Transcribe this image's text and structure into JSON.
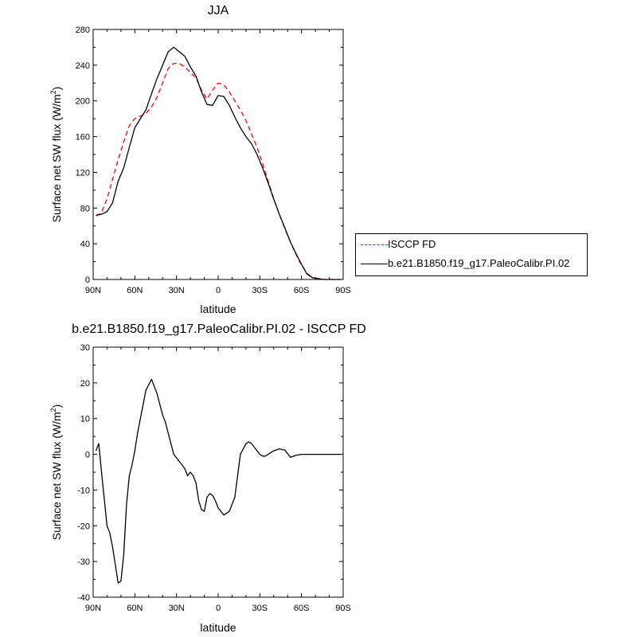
{
  "colors": {
    "obs": "#ff0000",
    "model": "#000000"
  },
  "chart_data": [
    {
      "type": "line",
      "title": "JJA",
      "xlabel": "latitude",
      "ylabel": "Surface net SW flux (W/m",
      "ylabel_sup": "2",
      "ylabel_close": ")",
      "xlim": [
        90,
        -90
      ],
      "ylim": [
        0,
        280
      ],
      "xticks": [
        90,
        60,
        30,
        0,
        -30,
        -60,
        -90
      ],
      "xticklabels": [
        "90N",
        "60N",
        "30N",
        "0",
        "30S",
        "60S",
        "90S"
      ],
      "yticks": [
        0,
        40,
        80,
        120,
        160,
        200,
        240,
        280
      ],
      "yticklabels": [
        "0",
        "40",
        "80",
        "120",
        "160",
        "200",
        "240",
        "280"
      ],
      "legend_position": "right",
      "series": [
        {
          "name": "ISCCP FD",
          "style": "dashed",
          "color": "#ff0000",
          "x": [
            88,
            84,
            80,
            76,
            72,
            68,
            64,
            60,
            56,
            52,
            48,
            44,
            40,
            36,
            32,
            28,
            24,
            20,
            16,
            12,
            8,
            4,
            0,
            -4,
            -8,
            -12,
            -16,
            -20,
            -24,
            -28,
            -32,
            -36,
            -40,
            -44,
            -48,
            -52,
            -56,
            -60,
            -64,
            -68,
            -72,
            -76,
            -80,
            -84,
            -88
          ],
          "y": [
            71,
            75,
            90,
            112,
            134,
            154,
            172,
            180,
            183,
            186,
            193,
            204,
            220,
            236,
            242,
            242,
            238,
            232,
            226,
            212,
            202,
            212,
            220,
            218,
            210,
            200,
            190,
            178,
            163,
            148,
            130,
            110,
            91,
            73,
            57,
            42,
            28,
            16,
            7,
            2,
            1,
            0,
            0,
            0,
            0
          ]
        },
        {
          "name": "b.e21.B1850.f19_g17.PaleoCalibr.PI.02",
          "style": "solid",
          "color": "#000000",
          "x": [
            88,
            84,
            80,
            76,
            72,
            68,
            64,
            60,
            56,
            52,
            48,
            44,
            40,
            36,
            32,
            28,
            24,
            20,
            16,
            12,
            8,
            4,
            0,
            -4,
            -8,
            -12,
            -16,
            -20,
            -24,
            -28,
            -32,
            -36,
            -40,
            -44,
            -48,
            -52,
            -56,
            -60,
            -64,
            -68,
            -72,
            -76,
            -80,
            -84,
            -88
          ],
          "y": [
            72,
            73,
            76,
            86,
            110,
            125,
            148,
            170,
            180,
            190,
            208,
            225,
            240,
            255,
            260,
            255,
            250,
            238,
            228,
            210,
            196,
            195,
            206,
            205,
            195,
            182,
            170,
            160,
            152,
            140,
            125,
            108,
            90,
            73,
            58,
            42,
            29,
            17,
            6,
            2,
            1,
            0,
            0,
            0,
            0
          ]
        }
      ]
    },
    {
      "type": "line",
      "title": "b.e21.B1850.f19_g17.PaleoCalibr.PI.02 - ISCCP FD",
      "xlabel": "latitude",
      "ylabel": "Surface net SW flux (W/m",
      "ylabel_sup": "2",
      "ylabel_close": ")",
      "xlim": [
        90,
        -90
      ],
      "ylim": [
        -40,
        30
      ],
      "xticks": [
        90,
        60,
        30,
        0,
        -30,
        -60,
        -90
      ],
      "xticklabels": [
        "90N",
        "60N",
        "30N",
        "0",
        "30S",
        "60S",
        "90S"
      ],
      "yticks": [
        -40,
        -30,
        -20,
        -10,
        0,
        10,
        20,
        30
      ],
      "yticklabels": [
        "-40",
        "-30",
        "-20",
        "-10",
        "0",
        "10",
        "20",
        "30"
      ],
      "series": [
        {
          "color": "#000000",
          "style": "solid",
          "x": [
            88,
            86,
            84,
            80,
            78,
            76,
            72,
            70,
            68,
            66,
            64,
            62,
            60,
            58,
            56,
            52,
            48,
            44,
            42,
            40,
            38,
            36,
            32,
            28,
            26,
            24,
            22,
            20,
            18,
            16,
            14,
            12,
            10,
            8,
            6,
            4,
            2,
            0,
            -4,
            -8,
            -12,
            -14,
            -16,
            -20,
            -22,
            -24,
            -26,
            -28,
            -30,
            -32,
            -34,
            -36,
            -38,
            -40,
            -44,
            -48,
            -52,
            -56,
            -60,
            -64,
            -68,
            -72,
            -76,
            -80,
            -84,
            -88
          ],
          "y": [
            1,
            3,
            -5,
            -20,
            -22,
            -26,
            -36,
            -35.5,
            -28,
            -14,
            -6,
            -3,
            1,
            6,
            10,
            18,
            21,
            17,
            14,
            11,
            9,
            6,
            0,
            -2,
            -3,
            -4,
            -6,
            -5,
            -6,
            -8,
            -13,
            -15.5,
            -16,
            -12,
            -11,
            -11.5,
            -13,
            -15,
            -17,
            -16,
            -12,
            -6,
            0,
            3,
            3.5,
            3,
            2,
            1,
            0,
            -0.5,
            -0.5,
            0,
            0.5,
            1,
            1.5,
            1.2,
            -0.8,
            -0.3,
            0,
            0,
            0,
            0,
            0,
            0,
            0,
            0
          ]
        }
      ]
    }
  ]
}
